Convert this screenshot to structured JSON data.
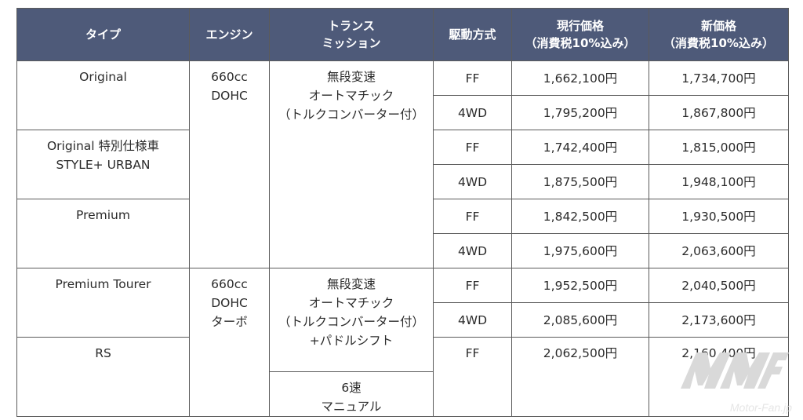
{
  "headers": {
    "type": "タイプ",
    "engine": "エンジン",
    "transmission": [
      "トランス",
      "ミッション"
    ],
    "drive": "駆動方式",
    "current_price": [
      "現行価格",
      "（消費税10%込み）"
    ],
    "new_price": [
      "新価格",
      "（消費税10%込み）"
    ]
  },
  "types": {
    "original": "Original",
    "special": [
      "Original 特別仕様車",
      "STYLE+ URBAN"
    ],
    "premium": "Premium",
    "premium_tourer": "Premium Tourer",
    "rs": "RS"
  },
  "engines": {
    "na": [
      "660cc",
      "DOHC"
    ],
    "turbo": [
      "660cc",
      "DOHC",
      "ターボ"
    ]
  },
  "transmissions": {
    "cvt": [
      "無段変速",
      "オートマチック",
      "（トルクコンバーター付）"
    ],
    "cvt_paddle": [
      "無段変速",
      "オートマチック",
      "（トルクコンバーター付）",
      "+パドルシフト"
    ],
    "mt": [
      "6速",
      "マニュアル"
    ]
  },
  "rows": [
    {
      "drive": "FF",
      "current": "1,662,100円",
      "new": "1,734,700円"
    },
    {
      "drive": "4WD",
      "current": "1,795,200円",
      "new": "1,867,800円"
    },
    {
      "drive": "FF",
      "current": "1,742,400円",
      "new": "1,815,000円"
    },
    {
      "drive": "4WD",
      "current": "1,875,500円",
      "new": "1,948,100円"
    },
    {
      "drive": "FF",
      "current": "1,842,500円",
      "new": "1,930,500円"
    },
    {
      "drive": "4WD",
      "current": "1,975,600円",
      "new": "2,063,600円"
    },
    {
      "drive": "FF",
      "current": "1,952,500円",
      "new": "2,040,500円"
    },
    {
      "drive": "4WD",
      "current": "2,085,600円",
      "new": "2,173,600円"
    },
    {
      "drive": "FF",
      "current": "2,062,500円",
      "new": "2,160,400円"
    }
  ],
  "watermark": {
    "text": "Motor-Fan.jp"
  }
}
